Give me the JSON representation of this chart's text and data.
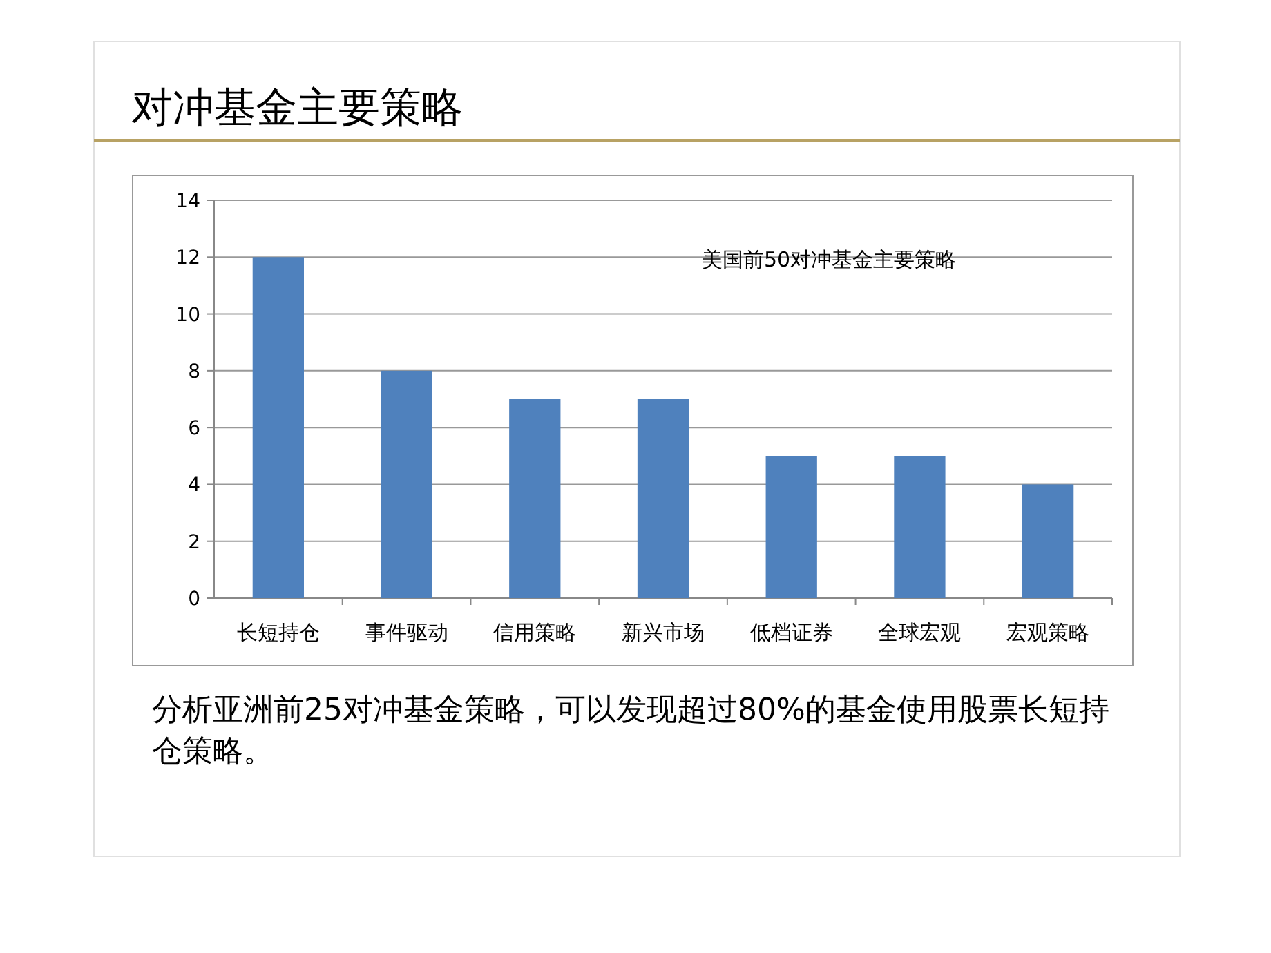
{
  "chart_data": {
    "type": "bar",
    "title": "对冲基金主要策略",
    "subtitle": "美国前50对冲基金主要策略",
    "categories": [
      "长短持仓",
      "事件驱动",
      "信用策略",
      "新兴市场",
      "低档证券",
      "全球宏观",
      "宏观策略"
    ],
    "values": [
      12,
      8,
      7,
      7,
      5,
      5,
      4
    ],
    "color": "#4f81bd",
    "ylim": [
      0,
      14
    ],
    "yticks": [
      0,
      2,
      4,
      6,
      8,
      10,
      12,
      14
    ],
    "grid": "y",
    "annotations": [
      "分析亚洲前25对冲基金策略，可以发现超过80%的基金使用股票长短持仓策略。"
    ]
  }
}
